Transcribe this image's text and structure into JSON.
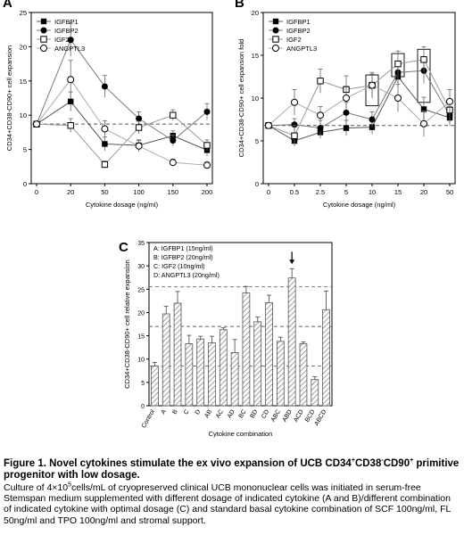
{
  "chart_data": [
    {
      "panel": "A",
      "type": "line",
      "xlabel": "Cytokine dosage (ng/ml)",
      "ylabel": "CD34+CD38-CD90+ cell expansion",
      "categories": [
        "0",
        "20",
        "50",
        "100",
        "150",
        "200"
      ],
      "ylim": [
        0,
        25
      ],
      "yticks": [
        "0",
        "5",
        "10",
        "15",
        "20",
        "25"
      ],
      "baseline": 8.7,
      "legend_position": "top-left",
      "series": [
        {
          "name": "IGFBP1",
          "marker": "filled-square",
          "values": [
            8.7,
            12.0,
            5.8,
            5.6,
            7.0,
            4.9
          ],
          "errors": [
            0,
            1.4,
            1.0,
            0.8,
            0.7,
            0.9
          ]
        },
        {
          "name": "IGFBP2",
          "marker": "filled-circle",
          "values": [
            8.7,
            21.0,
            14.2,
            9.5,
            6.3,
            10.5
          ],
          "errors": [
            0,
            2.4,
            1.6,
            1.0,
            0.8,
            1.2
          ]
        },
        {
          "name": "IGF2",
          "marker": "open-square",
          "values": [
            8.7,
            8.5,
            2.8,
            8.2,
            10.0,
            5.6
          ],
          "errors": [
            0,
            1.0,
            0.5,
            0.9,
            0.8,
            0.8
          ]
        },
        {
          "name": "ANGPTL3",
          "marker": "open-circle",
          "values": [
            8.7,
            15.2,
            8.0,
            5.5,
            3.1,
            2.7
          ],
          "errors": [
            0,
            2.8,
            1.2,
            0.8,
            0.5,
            0.5
          ]
        }
      ]
    },
    {
      "panel": "B",
      "type": "line",
      "xlabel": "Cytokine dosage (ng/ml)",
      "ylabel": "CD34+CD38-CD90+ cell expansion fold",
      "categories": [
        "0",
        "0.5",
        "2.5",
        "5",
        "10",
        "15",
        "20",
        "50"
      ],
      "ylim": [
        0,
        20
      ],
      "yticks": [
        "0",
        "5",
        "10",
        "15",
        "20"
      ],
      "baseline": 6.8,
      "legend_position": "top-left",
      "series": [
        {
          "name": "IGFBP1",
          "marker": "filled-square",
          "values": [
            6.8,
            5.0,
            6.0,
            6.5,
            6.6,
            12.5,
            8.7,
            7.7
          ],
          "errors": [
            0,
            0.6,
            0.7,
            0.9,
            0.8,
            1.2,
            1.4,
            0.9
          ]
        },
        {
          "name": "IGFBP2",
          "marker": "filled-circle",
          "values": [
            6.8,
            6.9,
            6.5,
            8.3,
            7.5,
            13.0,
            13.2,
            8.0
          ],
          "errors": [
            0,
            0.7,
            0.9,
            1.2,
            0.9,
            1.3,
            1.5,
            1.0
          ]
        },
        {
          "name": "IGF2",
          "marker": "open-square",
          "values": [
            6.8,
            5.6,
            12.0,
            11.0,
            11.5,
            14.0,
            14.5,
            8.6
          ],
          "errors": [
            0,
            1.2,
            1.4,
            1.6,
            1.5,
            1.5,
            1.5,
            1.3
          ]
        },
        {
          "name": "ANGPTL3",
          "marker": "open-circle",
          "values": [
            6.8,
            9.5,
            8.0,
            10.0,
            11.5,
            10.0,
            7.0,
            9.6
          ],
          "errors": [
            0,
            1.5,
            1.0,
            1.4,
            1.3,
            1.6,
            1.5,
            1.4
          ]
        }
      ],
      "highlight_boxes": [
        "10",
        "15",
        "20"
      ]
    },
    {
      "panel": "C",
      "type": "bar",
      "xlabel": "Cytokine combination",
      "ylabel": "CD34+CD38-CD90+ cell relative expansion",
      "categories": [
        "Control",
        "A",
        "B",
        "C",
        "D",
        "AB",
        "AC",
        "AD",
        "BC",
        "BD",
        "CD",
        "ABC",
        "ABD",
        "ACD",
        "BCD",
        "ABCD"
      ],
      "values": [
        8.5,
        19.7,
        22.0,
        13.3,
        14.3,
        13.5,
        16.3,
        11.4,
        24.2,
        18.0,
        22.1,
        13.8,
        27.4,
        13.3,
        5.6,
        20.6
      ],
      "errors": [
        0.8,
        1.6,
        2.5,
        1.8,
        0.6,
        1.4,
        0.4,
        2.8,
        1.4,
        1.0,
        1.6,
        0.9,
        2.0,
        0.4,
        0.6,
        4.0
      ],
      "ylim": [
        0,
        35
      ],
      "yticks": [
        "0",
        "5",
        "10",
        "15",
        "20",
        "25",
        "30",
        "35"
      ],
      "reference_lines": [
        8.5,
        17.0,
        25.5
      ],
      "arrow_at": "ABD",
      "legend": [
        "A: IGFBP1 (15ng/ml)",
        "B: IGFBP2 (20ng/ml)",
        "C: IGF2 (10ng/ml)",
        "D: ANGPTL3 (20ng/ml)"
      ]
    }
  ],
  "caption": {
    "title_html": "Figure 1. Novel cytokines stimulate the ex vivo expansion of UCB CD34<sup>+</sup>CD38<sup>-</sup>CD90<sup>+</sup> primitive progenitor with low dosage.",
    "body_html": "Culture of 4×10<sup>5</sup>cells/mL of cryopreserved clinical UCB mononuclear cells was initiated in serum-free Stemspan medium supplemented with different dosage of indicated cytokine (A and B)/different combination of indicated cytokine with optimal dosage (C) and standard basal cytokine combination of SCF 100ng/ml, FL 50ng/ml and TPO 100ng/ml and stromal support."
  }
}
